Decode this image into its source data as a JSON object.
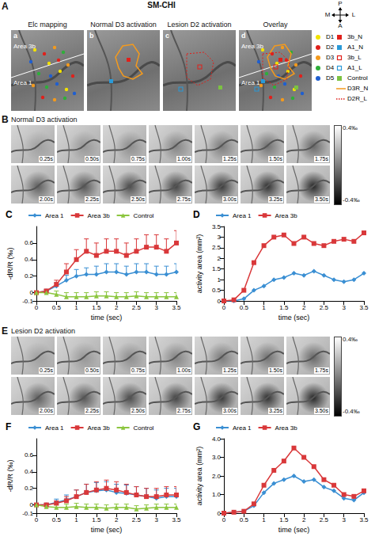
{
  "figure": {
    "panel_A": {
      "letter": "A",
      "title": "SM-CHI",
      "subpanels": [
        {
          "letter": "a",
          "title": "Elc mapping",
          "area_labels": [
            "Area 3b",
            "Area 1"
          ]
        },
        {
          "letter": "b",
          "title": "Normal D3 activation"
        },
        {
          "letter": "c",
          "title": "Lesion D2 activation"
        },
        {
          "letter": "d",
          "title": "Overlay",
          "area_labels": [
            "Area 3b",
            "Area 1"
          ]
        }
      ],
      "compass": {
        "top": "P",
        "left": "M",
        "right": "L",
        "bottom": "A"
      },
      "legend_digits": [
        {
          "label": "D1",
          "color": "#f2e200",
          "marker": "dot"
        },
        {
          "label": "D2",
          "color": "#e0201b",
          "marker": "dot"
        },
        {
          "label": "D3",
          "color": "#f39a1e",
          "marker": "dot"
        },
        {
          "label": "D4",
          "color": "#2fae3a",
          "marker": "dot"
        },
        {
          "label": "D5",
          "color": "#1f5fd0",
          "marker": "dot"
        }
      ],
      "legend_sites": [
        {
          "label": "3b_N",
          "color": "#e0201b",
          "marker": "square"
        },
        {
          "label": "A1_N",
          "color": "#2a9ad8",
          "marker": "square"
        },
        {
          "label": "3b_L",
          "color": "#e0201b",
          "marker": "open_square"
        },
        {
          "label": "A1_L",
          "color": "#2a9ad8",
          "marker": "open_square"
        },
        {
          "label": "Control",
          "color": "#7cc242",
          "marker": "square"
        },
        {
          "label": "D3R_N",
          "color": "#f39a1e",
          "marker": "line"
        },
        {
          "label": "D2R_L",
          "color": "#e0201b",
          "marker": "dotted_line"
        }
      ]
    },
    "panel_B": {
      "letter": "B",
      "title": "Normal D3 activation",
      "frames": [
        "0.25s",
        "0.50s",
        "0.75s",
        "1.00s",
        "1.25s",
        "1.50s",
        "1.75s",
        "2.00s",
        "2.25s",
        "2.50s",
        "2.75s",
        "3.00s",
        "3.25s",
        "3.50s"
      ],
      "colorbar": {
        "max_label": "0.4‰",
        "min_label": "-0.4‰"
      }
    },
    "panel_E": {
      "letter": "E",
      "title": "Lesion D2 activation",
      "frames": [
        "0.25s",
        "0.50s",
        "0.75s",
        "1.00s",
        "1.25s",
        "1.50s",
        "1.75s",
        "2.00s",
        "2.25s",
        "2.50s",
        "2.75s",
        "3.00s",
        "3.25s",
        "3.50s"
      ],
      "colorbar": {
        "max_label": "0.4‰",
        "min_label": "-0.4‰"
      }
    }
  },
  "chart_data": [
    {
      "letter": "C",
      "type": "line",
      "x_label": "time (sec)",
      "y_label": "-dR/R (‰)",
      "x": [
        0,
        0.25,
        0.5,
        0.75,
        1,
        1.25,
        1.5,
        1.75,
        2,
        2.25,
        2.5,
        2.75,
        3,
        3.25,
        3.5
      ],
      "xlim": [
        0,
        3.5
      ],
      "xticks": [
        0,
        0.5,
        1,
        1.5,
        2,
        2.5,
        3,
        3.5
      ],
      "ylim": [
        -0.1,
        0.8
      ],
      "yticks": [
        -0.1,
        0,
        0.2,
        0.4,
        0.6
      ],
      "grid": false,
      "legend": "top",
      "series": [
        {
          "name": "Area 1",
          "color": "#3a8fd3",
          "marker": "diamond",
          "values": [
            0,
            0.02,
            0.08,
            0.15,
            0.2,
            0.22,
            0.22,
            0.25,
            0.25,
            0.22,
            0.25,
            0.25,
            0.22,
            0.22,
            0.25
          ],
          "errors": [
            0,
            0.02,
            0.04,
            0.06,
            0.08,
            0.08,
            0.1,
            0.1,
            0.1,
            0.1,
            0.1,
            0.1,
            0.1,
            0.1,
            0.1
          ]
        },
        {
          "name": "Area 3b",
          "color": "#d9383a",
          "marker": "square",
          "values": [
            0,
            0.02,
            0.1,
            0.25,
            0.4,
            0.5,
            0.45,
            0.5,
            0.5,
            0.45,
            0.5,
            0.55,
            0.55,
            0.5,
            0.6
          ],
          "errors": [
            0,
            0.02,
            0.05,
            0.1,
            0.12,
            0.15,
            0.15,
            0.15,
            0.15,
            0.15,
            0.15,
            0.15,
            0.15,
            0.15,
            0.15
          ]
        },
        {
          "name": "Control",
          "color": "#8cc63f",
          "marker": "triangle",
          "values": [
            0,
            0,
            -0.02,
            -0.05,
            -0.05,
            -0.05,
            -0.04,
            -0.04,
            -0.05,
            -0.05,
            -0.04,
            -0.05,
            -0.05,
            -0.05,
            -0.05
          ],
          "errors": [
            0,
            0.02,
            0.04,
            0.05,
            0.05,
            0.05,
            0.05,
            0.05,
            0.05,
            0.05,
            0.05,
            0.05,
            0.05,
            0.05,
            0.05
          ]
        }
      ]
    },
    {
      "letter": "D",
      "type": "line",
      "x_label": "time (sec)",
      "y_label": "activity area (mm²)",
      "x": [
        0,
        0.25,
        0.5,
        0.75,
        1,
        1.25,
        1.5,
        1.75,
        2,
        2.25,
        2.5,
        2.75,
        3,
        3.25,
        3.5
      ],
      "xlim": [
        0,
        3.5
      ],
      "xticks": [
        0,
        0.5,
        1,
        1.5,
        2,
        2.5,
        3,
        3.5
      ],
      "ylim": [
        0,
        3.5
      ],
      "yticks": [
        0,
        0.5,
        1,
        1.5,
        2,
        2.5,
        3,
        3.5
      ],
      "grid": false,
      "legend": "top",
      "series": [
        {
          "name": "Area 1",
          "color": "#3a8fd3",
          "marker": "diamond",
          "values": [
            0,
            0,
            0.1,
            0.5,
            0.7,
            1.0,
            1.1,
            1.3,
            1.2,
            1.4,
            1.2,
            1.0,
            0.9,
            1.0,
            1.3
          ]
        },
        {
          "name": "Area 3b",
          "color": "#d9383a",
          "marker": "square",
          "values": [
            0,
            0.05,
            0.5,
            1.8,
            2.6,
            3.0,
            3.1,
            2.7,
            3.0,
            2.7,
            2.6,
            2.8,
            2.9,
            2.8,
            3.2
          ]
        }
      ]
    },
    {
      "letter": "F",
      "type": "line",
      "x_label": "time (sec)",
      "y_label": "-dR/R (‰)",
      "x": [
        0,
        0.25,
        0.5,
        0.75,
        1,
        1.25,
        1.5,
        1.75,
        2,
        2.25,
        2.5,
        2.75,
        3,
        3.25,
        3.5
      ],
      "xlim": [
        0,
        3.5
      ],
      "xticks": [
        0,
        0.5,
        1,
        1.5,
        2,
        2.5,
        3,
        3.5
      ],
      "ylim": [
        -0.1,
        0.8
      ],
      "yticks": [
        -0.1,
        0,
        0.2,
        0.4,
        0.6
      ],
      "grid": false,
      "legend": "top",
      "series": [
        {
          "name": "Area 1",
          "color": "#3a8fd3",
          "marker": "diamond",
          "values": [
            0,
            0,
            0.03,
            0.06,
            0.1,
            0.15,
            0.17,
            0.18,
            0.15,
            0.14,
            0.12,
            0.1,
            0.08,
            0.1,
            0.1
          ],
          "errors": [
            0,
            0.02,
            0.04,
            0.06,
            0.08,
            0.1,
            0.1,
            0.1,
            0.1,
            0.1,
            0.1,
            0.1,
            0.1,
            0.1,
            0.1
          ]
        },
        {
          "name": "Area 3b",
          "color": "#d9383a",
          "marker": "square",
          "values": [
            0,
            0,
            0.02,
            0.05,
            0.1,
            0.15,
            0.18,
            0.2,
            0.18,
            0.15,
            0.12,
            0.1,
            0.1,
            0.12,
            0.12
          ],
          "errors": [
            0,
            0.02,
            0.03,
            0.05,
            0.08,
            0.1,
            0.1,
            0.1,
            0.1,
            0.1,
            0.1,
            0.1,
            0.1,
            0.1,
            0.1
          ]
        },
        {
          "name": "Control",
          "color": "#8cc63f",
          "marker": "triangle",
          "values": [
            0,
            -0.02,
            -0.03,
            -0.03,
            -0.02,
            -0.03,
            -0.03,
            -0.04,
            -0.03,
            -0.03,
            -0.05,
            -0.04,
            -0.03,
            -0.03,
            -0.03
          ],
          "errors": [
            0,
            0.02,
            0.03,
            0.04,
            0.04,
            0.04,
            0.04,
            0.04,
            0.04,
            0.04,
            0.04,
            0.04,
            0.04,
            0.04,
            0.04
          ]
        }
      ]
    },
    {
      "letter": "G",
      "type": "line",
      "x_label": "time (sec)",
      "y_label": "activity area (mm²)",
      "x": [
        0,
        0.25,
        0.5,
        0.75,
        1,
        1.25,
        1.5,
        1.75,
        2,
        2.25,
        2.5,
        2.75,
        3,
        3.25,
        3.5
      ],
      "xlim": [
        0,
        3.5
      ],
      "xticks": [
        0,
        0.5,
        1,
        1.5,
        2,
        2.5,
        3,
        3.5
      ],
      "ylim": [
        0,
        4
      ],
      "yticks": [
        0,
        {
          "value": 1,
          "label": "1.0"
        },
        {
          "value": 2,
          "label": "2.0"
        },
        {
          "value": 3,
          "label": "3.0"
        },
        {
          "value": 4,
          "label": "4.0"
        }
      ],
      "grid": false,
      "legend": "top",
      "series": [
        {
          "name": "Area 1",
          "color": "#3a8fd3",
          "marker": "diamond",
          "values": [
            0,
            0.05,
            0.1,
            0.4,
            1.1,
            1.6,
            1.8,
            2.0,
            1.7,
            1.8,
            1.4,
            1.2,
            0.8,
            0.7,
            1.1
          ]
        },
        {
          "name": "Area 3b",
          "color": "#d9383a",
          "marker": "square",
          "values": [
            0,
            0.05,
            0.1,
            0.5,
            1.5,
            2.3,
            2.8,
            3.5,
            3.0,
            2.5,
            1.8,
            1.5,
            1.0,
            0.9,
            1.2
          ]
        }
      ]
    }
  ]
}
